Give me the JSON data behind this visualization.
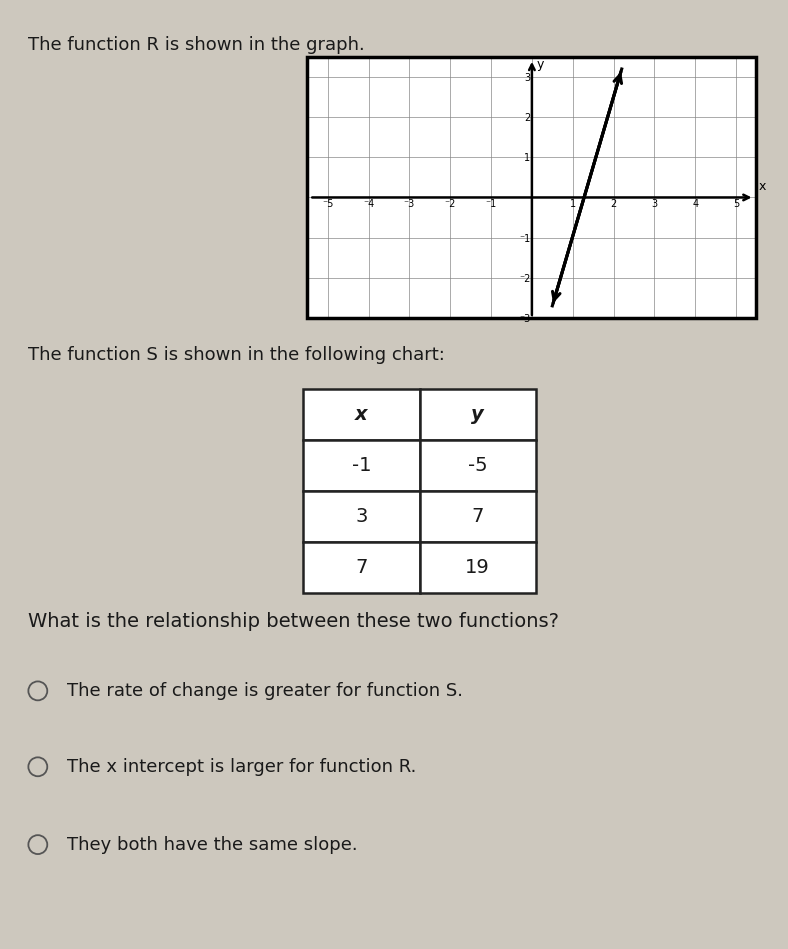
{
  "bg_color": "#cdc8be",
  "title_graph": "The function R is shown in the graph.",
  "title_table": "The function S is shown in the following chart:",
  "question": "What is the relationship between these two functions?",
  "options": [
    "The rate of change is greater for function S.",
    "The x intercept is larger for function R.",
    "They both have the same slope."
  ],
  "graph": {
    "xlim": [
      -5.5,
      5.5
    ],
    "ylim": [
      -3.0,
      3.5
    ],
    "xticks": [
      -5,
      -4,
      -3,
      -2,
      -1,
      1,
      2,
      3,
      4,
      5
    ],
    "yticks": [
      -2,
      -1,
      1,
      2,
      3
    ],
    "line_x1": 0.5,
    "line_y1": -2.7,
    "line_x2": 2.2,
    "line_y2": 3.2
  },
  "table": {
    "headers": [
      "x",
      "y"
    ],
    "rows": [
      [
        "-1",
        "-5"
      ],
      [
        "3",
        "7"
      ],
      [
        "7",
        "19"
      ]
    ]
  },
  "font_size_title": 13,
  "font_size_question": 14,
  "font_size_options": 13,
  "font_size_table_header": 14,
  "font_size_table_data": 14,
  "text_color": "#1a1a1a"
}
